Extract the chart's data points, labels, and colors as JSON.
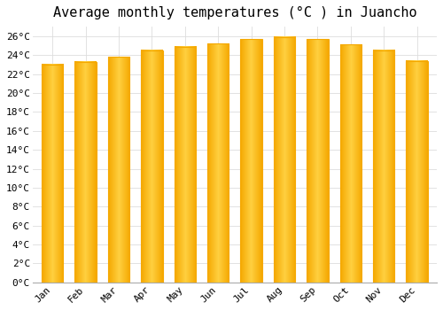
{
  "title": "Average monthly temperatures (°C ) in Juancho",
  "months": [
    "Jan",
    "Feb",
    "Mar",
    "Apr",
    "May",
    "Jun",
    "Jul",
    "Aug",
    "Sep",
    "Oct",
    "Nov",
    "Dec"
  ],
  "values": [
    23.0,
    23.3,
    23.8,
    24.5,
    24.9,
    25.2,
    25.7,
    25.9,
    25.7,
    25.1,
    24.5,
    23.4
  ],
  "bar_color_left": "#F5A800",
  "bar_color_mid": "#FFD040",
  "bar_color_right": "#F5A800",
  "background_color": "#FFFFFF",
  "grid_color": "#DDDDDD",
  "ylim": [
    0,
    27
  ],
  "ytick_step": 2,
  "title_fontsize": 11,
  "tick_fontsize": 8,
  "font_family": "monospace"
}
